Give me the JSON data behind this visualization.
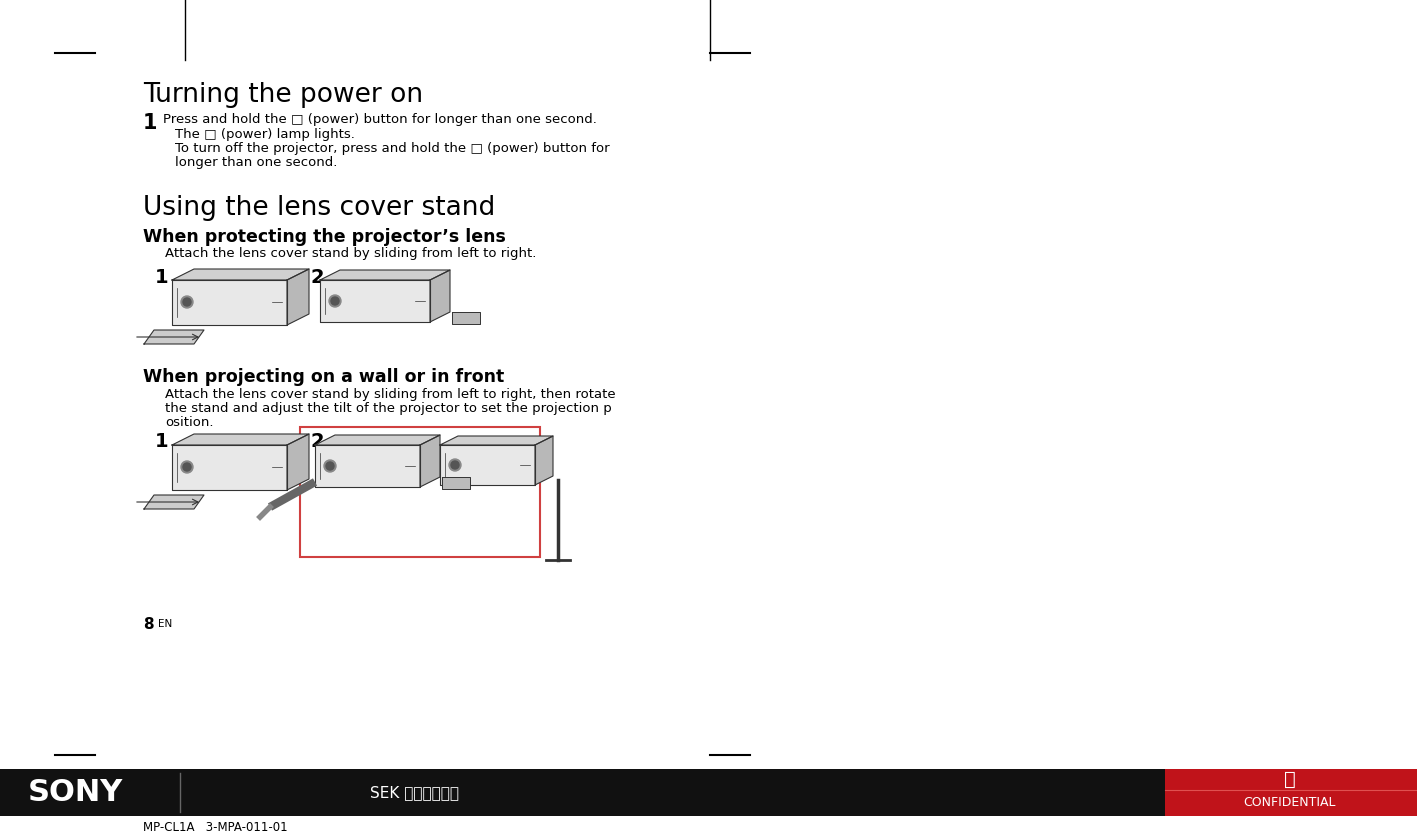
{
  "bg_color": "#ffffff",
  "footer_bg": "#111111",
  "footer_red_bg": "#c0131a",
  "title1": "Turning the power on",
  "title2": "Using the lens cover stand",
  "subtitle1": "When protecting the projector’s lens",
  "subtitle2": "When projecting on a wall or in front",
  "step1_text": "Press and hold the □ (power) button for longer than one second.",
  "step1_line2": "The □ (power) lamp lights.",
  "step1_line3": "To turn off the projector, press and hold the □ (power) button for",
  "step1_line4": "longer than one second.",
  "attach_text1": "Attach the lens cover stand by sliding from left to right.",
  "attach_text2": "Attach the lens cover stand by sliding from left to right, then rotate",
  "attach_text2b": "the stand and adjust the tilt of the projector to set the projection p",
  "attach_text2c": "osition.",
  "page_num": "8",
  "page_suffix": "EN",
  "sony_text": "SONY",
  "center_text": "SEK 設計・技術部",
  "secret_char": "秘",
  "confidential": "CONFIDENTIAL",
  "footer_line": "MP-CL1A   3-MPA-011-01",
  "fig_width": 14.17,
  "fig_height": 8.34
}
